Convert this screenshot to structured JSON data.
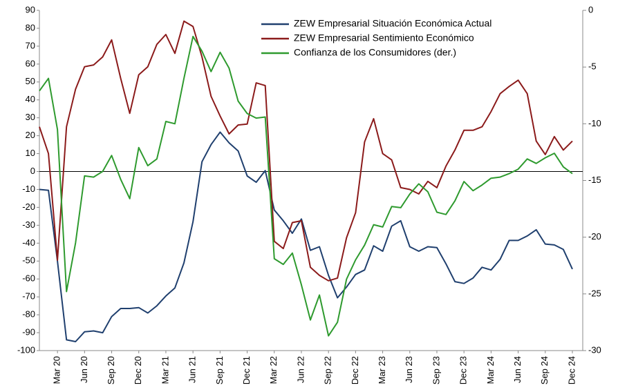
{
  "chart_data": {
    "type": "line",
    "categories": [
      null,
      null,
      "Mar 20",
      null,
      null,
      "Jun 20",
      null,
      null,
      "Sep 20",
      null,
      null,
      "Dec 20",
      null,
      null,
      "Mar 21",
      null,
      null,
      "Jun 21",
      null,
      null,
      "Sep 21",
      null,
      null,
      "Dec 21",
      null,
      null,
      "Mar 22",
      null,
      null,
      "Jun 22",
      null,
      null,
      "Sep 22",
      null,
      null,
      "Dec 22",
      null,
      null,
      "Mar 23",
      null,
      null,
      "Jun 23",
      null,
      null,
      "Sep 23",
      null,
      null,
      "Dec 23",
      null,
      null,
      "Mar 24",
      null,
      null,
      "Jun 24",
      null,
      null,
      "Sep 24",
      null,
      null,
      "Dec 24"
    ],
    "series": [
      {
        "name": "ZEW Empresarial Situación Económica Actual",
        "color": "#1f3f6e",
        "values": [
          -10,
          -10.5,
          -50,
          -94,
          -95,
          -89.5,
          -89,
          -90,
          -81,
          -76.5,
          -76.5,
          -76,
          -79,
          -75,
          -69.5,
          -65,
          -51,
          -28,
          5.5,
          15,
          22,
          16,
          11.5,
          -2.5,
          -6,
          0.5,
          -21.5,
          -27.5,
          -34.5,
          -26.5,
          -44,
          -42,
          -58,
          -70.5,
          -64.5,
          -57.5,
          -55,
          -41.5,
          -44.5,
          -30.5,
          -27.5,
          -42,
          -44.5,
          -42,
          -42.5,
          -51.5,
          -61.5,
          -62.5,
          -59.5,
          -53.5,
          -55,
          -49,
          -38.5,
          -38.5,
          -36,
          -32.5,
          -40.5,
          -41,
          -43.5,
          -54.5
        ]
      },
      {
        "name": "ZEW Empresarial Sentimiento Económico",
        "color": "#8b1a1a",
        "values": [
          25,
          10,
          -49.5,
          25,
          46,
          58.5,
          59.5,
          64,
          73.5,
          52,
          32.5,
          54,
          58.5,
          71,
          76.5,
          66,
          84,
          81,
          64,
          42,
          31,
          21,
          26,
          26.5,
          49.5,
          48,
          -39,
          -43,
          -28.5,
          -27.5,
          -53.5,
          -58,
          -61,
          -59.5,
          -37,
          -23,
          16.5,
          29.5,
          10,
          6.5,
          -9,
          -10,
          -12.5,
          -5.5,
          -9,
          3,
          12,
          23,
          23,
          25,
          33.5,
          43.5,
          47.5,
          51,
          43.5,
          17,
          9.5,
          19.5,
          12,
          17
        ]
      },
      {
        "name": "Confianza de los Consumidores (der.)",
        "color": "#2e9a2e",
        "axis": "y2",
        "values": [
          -7.1,
          -6.0,
          -10.5,
          -24.8,
          -20.5,
          -14.6,
          -14.7,
          -14.2,
          -12.8,
          -14.9,
          -16.6,
          -12.1,
          -13.7,
          -13.1,
          -9.8,
          -10.0,
          -6.0,
          -2.3,
          -3.6,
          -5.4,
          -3.7,
          -5.1,
          -8.0,
          -9.1,
          -9.5,
          -9.4,
          -21.9,
          -22.4,
          -21.4,
          -24.2,
          -27.3,
          -25.1,
          -28.7,
          -27.5,
          -23.7,
          -22.0,
          -20.7,
          -18.9,
          -19.1,
          -17.3,
          -17.4,
          -16.2,
          -15.3,
          -16.0,
          -17.8,
          -18.0,
          -16.8,
          -15.1,
          -15.9,
          -15.4,
          -14.8,
          -14.7,
          -14.4,
          -14.0,
          -13.1,
          -13.5,
          -13.0,
          -12.6,
          -13.8,
          -14.4
        ]
      }
    ],
    "ylim": [
      -100,
      90
    ],
    "yticks": [
      -100,
      -90,
      -80,
      -70,
      -60,
      -50,
      -40,
      -30,
      -20,
      -10,
      0,
      10,
      20,
      30,
      40,
      50,
      60,
      70,
      80,
      90
    ],
    "y2lim": [
      -30,
      0
    ],
    "y2ticks": [
      -30,
      -25,
      -20,
      -15,
      -10,
      -5,
      0
    ],
    "legend": "top"
  }
}
